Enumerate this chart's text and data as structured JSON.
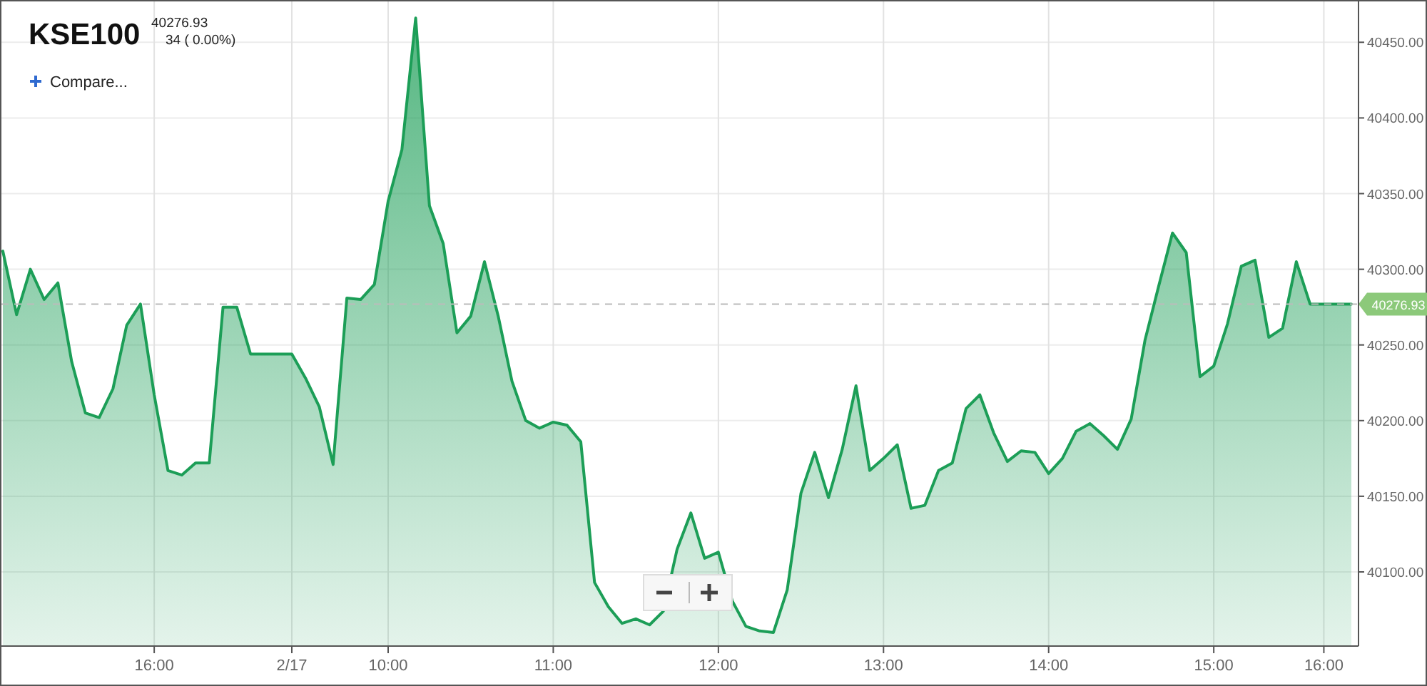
{
  "chart_data": {
    "type": "area",
    "title": "KSE100",
    "subtitle": "40276.93",
    "annotations": [
      "34 ( 0.00%)",
      "Compare..."
    ],
    "categories": [
      null,
      null,
      null,
      null,
      null,
      null,
      null,
      null,
      null,
      null,
      null,
      "16:00",
      null,
      null,
      null,
      null,
      null,
      null,
      null,
      null,
      null,
      "2/17",
      null,
      null,
      null,
      null,
      null,
      null,
      "10:00",
      null,
      null,
      null,
      null,
      null,
      null,
      null,
      null,
      null,
      null,
      null,
      "11:00",
      null,
      null,
      null,
      null,
      null,
      null,
      null,
      null,
      null,
      null,
      null,
      "12:00",
      null,
      null,
      null,
      null,
      null,
      null,
      null,
      null,
      null,
      null,
      null,
      "13:00",
      null,
      null,
      null,
      null,
      null,
      null,
      null,
      null,
      null,
      null,
      null,
      "14:00",
      null,
      null,
      null,
      null,
      null,
      null,
      null,
      null,
      null,
      null,
      null,
      "15:00",
      null,
      null,
      null,
      null,
      null,
      null,
      null,
      "16:00",
      null,
      null
    ],
    "series": [
      {
        "color": "#1c9e57",
        "values": [
          40312,
          40270,
          40300,
          40280,
          40291,
          40239,
          40205,
          40202,
          40221,
          40263,
          40277,
          40217,
          40167,
          40164,
          40172,
          40172,
          40275,
          40275,
          40244,
          40244,
          40244,
          40244,
          40228,
          40209,
          40171,
          40281,
          40280,
          40290,
          40345,
          40379,
          40466,
          40342,
          40317,
          40258,
          40269,
          40305,
          40269,
          40226,
          40200,
          40195,
          40199,
          40197,
          40186,
          40093,
          40077,
          40066,
          40069,
          40065,
          40074,
          40115,
          40139,
          40109,
          40113,
          40081,
          40064,
          40061,
          40060,
          40088,
          40152,
          40179,
          40149,
          40181,
          40223,
          40167,
          40175,
          40184,
          40142,
          40144,
          40167,
          40172,
          40208,
          40217,
          40192,
          40173,
          40180,
          40179,
          40165,
          40175,
          40193,
          40198,
          40190,
          40181,
          40201,
          40253,
          40289,
          40324,
          40311,
          40229,
          40236,
          40264,
          40302,
          40306,
          40255,
          40261,
          40305,
          40277,
          40277,
          40277,
          40277
        ]
      }
    ],
    "ylim": [
      40051,
      40477
    ],
    "yticks": [
      {
        "value": 40100,
        "label": "40100.00"
      },
      {
        "value": 40150,
        "label": "40150.00"
      },
      {
        "value": 40200,
        "label": "40200.00"
      },
      {
        "value": 40250,
        "label": "40250.00"
      },
      {
        "value": 40300,
        "label": "40300.00"
      },
      {
        "value": 40350,
        "label": "40350.00"
      },
      {
        "value": 40400,
        "label": "40400.00"
      },
      {
        "value": 40450,
        "label": "40450.00"
      }
    ],
    "grid": true,
    "ref_lines": [
      {
        "axis": "y",
        "value": 40276.93,
        "label": "40276.93",
        "line_style": "dashed"
      }
    ]
  }
}
